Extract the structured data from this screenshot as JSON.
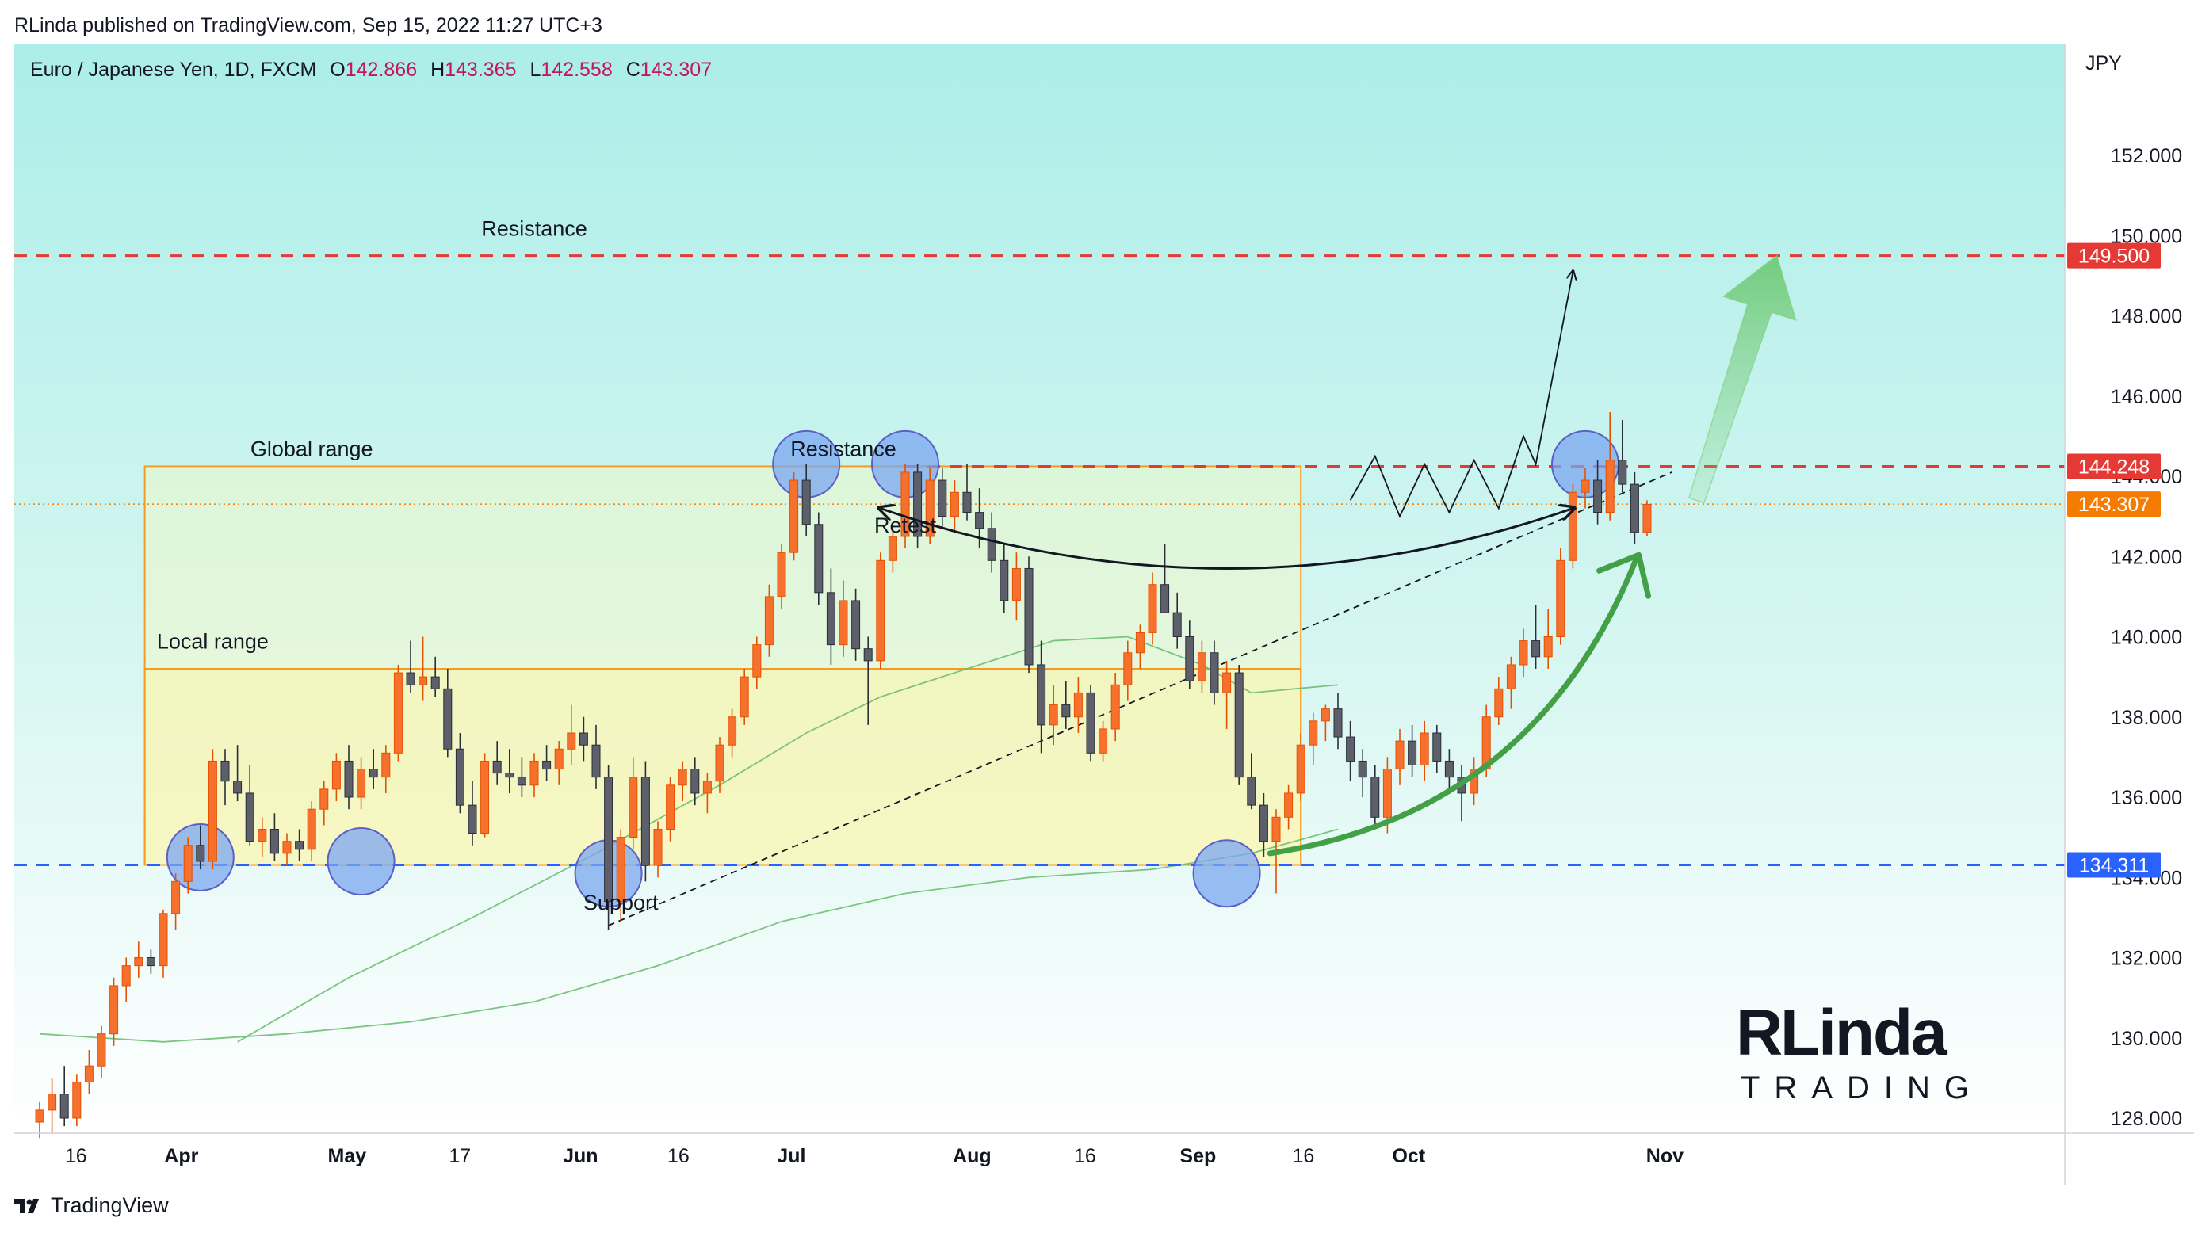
{
  "header": {
    "publisher_line": "RLinda published on TradingView.com, Sep 15, 2022 11:27 UTC+3"
  },
  "legend": {
    "symbol": "Euro / Japanese Yen, 1D, FXCM",
    "o_label": "O",
    "o": "142.866",
    "h_label": "H",
    "h": "143.365",
    "l_label": "L",
    "l": "142.558",
    "c_label": "C",
    "c": "143.307"
  },
  "footer": {
    "brand": "TradingView"
  },
  "logo": {
    "text_top": "RLinda",
    "text_bottom": "TRADING"
  },
  "colors": {
    "up": "#f7712e",
    "down": "#5d606b",
    "resistance": "#e53935",
    "support": "#2962ff",
    "range_border": "#f59b23",
    "ma": "#66bb6a",
    "arrow": "#43a047",
    "circle": "#7aa7f0"
  },
  "chart_data": {
    "type": "candlestick",
    "symbol": "Euro / Japanese Yen",
    "unit": "JPY",
    "timeframe": "1D",
    "ylim": [
      127.5,
      153.5
    ],
    "y_ticks": [
      "152.000",
      "150.000",
      "148.000",
      "146.000",
      "144.000",
      "142.000",
      "140.000",
      "138.000",
      "136.000",
      "134.000",
      "132.000",
      "130.000",
      "128.000"
    ],
    "x_ticks": [
      "16",
      "Apr",
      "May",
      "17",
      "Jun",
      "16",
      "Jul",
      "Aug",
      "16",
      "Sep",
      "16",
      "Oct",
      "Nov"
    ],
    "price_labels": [
      {
        "value": 149.5,
        "text": "149.500",
        "color": "#e53935"
      },
      {
        "value": 144.248,
        "text": "144.248",
        "color": "#e53935"
      },
      {
        "value": 143.307,
        "text": "143.307",
        "color": "#f57c00"
      },
      {
        "value": 134.311,
        "text": "134.311",
        "color": "#2962ff"
      }
    ],
    "annotations": [
      {
        "text": "Resistance",
        "x": 40,
        "y": 150.0
      },
      {
        "text": "Global range",
        "x": 22,
        "y": 144.5
      },
      {
        "text": "Resistance",
        "x": 65,
        "y": 144.5
      },
      {
        "text": "Retest",
        "x": 70,
        "y": 142.6
      },
      {
        "text": "Local range",
        "x": 14,
        "y": 139.7
      },
      {
        "text": "Support",
        "x": 47,
        "y": 133.2
      }
    ],
    "levels": [
      {
        "name": "resistance_high",
        "value": 149.5,
        "style": "dashed",
        "color": "#e53935"
      },
      {
        "name": "resistance",
        "value": 144.248,
        "style": "dashed",
        "color": "#e53935"
      },
      {
        "name": "last_close",
        "value": 143.307,
        "style": "dotted",
        "color": "#f57c00"
      },
      {
        "name": "support",
        "value": 134.311,
        "style": "dashed",
        "color": "#2962ff"
      }
    ],
    "ranges": [
      {
        "name": "Global range",
        "x_from": 8.5,
        "x_to": 102,
        "y_from": 134.311,
        "y_to": 144.248
      },
      {
        "name": "Local range",
        "x_from": 8.5,
        "x_to": 102,
        "y_from": 134.311,
        "y_to": 139.2
      }
    ],
    "candles": [
      [
        127.9,
        128.4,
        127.5,
        128.2
      ],
      [
        128.2,
        129.0,
        127.6,
        128.6
      ],
      [
        128.6,
        129.3,
        127.8,
        128.0
      ],
      [
        128.0,
        129.1,
        127.8,
        128.9
      ],
      [
        128.9,
        129.7,
        128.6,
        129.3
      ],
      [
        129.3,
        130.3,
        129.0,
        130.1
      ],
      [
        130.1,
        131.5,
        129.8,
        131.3
      ],
      [
        131.3,
        132.0,
        130.9,
        131.8
      ],
      [
        131.8,
        132.4,
        131.5,
        132.0
      ],
      [
        132.0,
        132.2,
        131.6,
        131.8
      ],
      [
        131.8,
        133.2,
        131.5,
        133.1
      ],
      [
        133.1,
        134.1,
        132.7,
        133.9
      ],
      [
        133.9,
        135.0,
        133.6,
        134.8
      ],
      [
        134.8,
        135.3,
        134.2,
        134.4
      ],
      [
        134.4,
        137.2,
        134.2,
        136.9
      ],
      [
        136.9,
        137.2,
        135.8,
        136.4
      ],
      [
        136.4,
        137.3,
        135.9,
        136.1
      ],
      [
        136.1,
        136.8,
        134.8,
        134.9
      ],
      [
        134.9,
        135.5,
        134.5,
        135.2
      ],
      [
        135.2,
        135.6,
        134.4,
        134.6
      ],
      [
        134.6,
        135.1,
        134.3,
        134.9
      ],
      [
        134.9,
        135.2,
        134.4,
        134.7
      ],
      [
        134.7,
        135.9,
        134.4,
        135.7
      ],
      [
        135.7,
        136.4,
        135.3,
        136.2
      ],
      [
        136.2,
        137.1,
        135.9,
        136.9
      ],
      [
        136.9,
        137.3,
        135.7,
        136.0
      ],
      [
        136.0,
        137.0,
        135.7,
        136.7
      ],
      [
        136.7,
        137.2,
        136.2,
        136.5
      ],
      [
        136.5,
        137.3,
        136.1,
        137.1
      ],
      [
        137.1,
        139.3,
        136.9,
        139.1
      ],
      [
        139.1,
        139.9,
        138.6,
        138.8
      ],
      [
        138.8,
        140.0,
        138.4,
        139.0
      ],
      [
        139.0,
        139.5,
        138.5,
        138.7
      ],
      [
        138.7,
        139.2,
        137.0,
        137.2
      ],
      [
        137.2,
        137.6,
        135.6,
        135.8
      ],
      [
        135.8,
        136.4,
        134.8,
        135.1
      ],
      [
        135.1,
        137.1,
        135.0,
        136.9
      ],
      [
        136.9,
        137.4,
        136.3,
        136.6
      ],
      [
        136.6,
        137.2,
        136.1,
        136.5
      ],
      [
        136.5,
        137.0,
        136.0,
        136.3
      ],
      [
        136.3,
        137.1,
        136.0,
        136.9
      ],
      [
        136.9,
        137.3,
        136.4,
        136.7
      ],
      [
        136.7,
        137.4,
        136.3,
        137.2
      ],
      [
        137.2,
        138.3,
        136.8,
        137.6
      ],
      [
        137.6,
        138.0,
        136.9,
        137.3
      ],
      [
        137.3,
        137.8,
        136.2,
        136.5
      ],
      [
        136.5,
        136.8,
        132.7,
        133.4
      ],
      [
        133.4,
        135.2,
        132.9,
        135.0
      ],
      [
        135.0,
        137.0,
        134.7,
        136.5
      ],
      [
        136.5,
        136.9,
        133.9,
        134.3
      ],
      [
        134.3,
        135.4,
        134.0,
        135.2
      ],
      [
        135.2,
        136.5,
        134.9,
        136.3
      ],
      [
        136.3,
        136.9,
        135.9,
        136.7
      ],
      [
        136.7,
        137.0,
        135.8,
        136.1
      ],
      [
        136.1,
        136.6,
        135.6,
        136.4
      ],
      [
        136.4,
        137.5,
        136.1,
        137.3
      ],
      [
        137.3,
        138.2,
        137.0,
        138.0
      ],
      [
        138.0,
        139.2,
        137.8,
        139.0
      ],
      [
        139.0,
        140.0,
        138.7,
        139.8
      ],
      [
        139.8,
        141.3,
        139.5,
        141.0
      ],
      [
        141.0,
        142.3,
        140.7,
        142.1
      ],
      [
        142.1,
        144.1,
        141.9,
        143.9
      ],
      [
        143.9,
        144.3,
        142.5,
        142.8
      ],
      [
        142.8,
        143.1,
        140.8,
        141.1
      ],
      [
        141.1,
        141.7,
        139.3,
        139.8
      ],
      [
        139.8,
        141.4,
        139.5,
        140.9
      ],
      [
        140.9,
        141.2,
        139.4,
        139.7
      ],
      [
        139.7,
        140.0,
        137.8,
        139.4
      ],
      [
        139.4,
        142.1,
        139.2,
        141.9
      ],
      [
        141.9,
        142.8,
        141.6,
        142.5
      ],
      [
        142.5,
        144.3,
        142.2,
        144.1
      ],
      [
        144.1,
        144.3,
        142.2,
        142.5
      ],
      [
        142.5,
        144.2,
        142.3,
        143.9
      ],
      [
        143.9,
        144.2,
        142.7,
        143.0
      ],
      [
        143.0,
        143.9,
        142.6,
        143.6
      ],
      [
        143.6,
        144.3,
        142.9,
        143.1
      ],
      [
        143.1,
        143.7,
        142.2,
        142.7
      ],
      [
        142.7,
        143.1,
        141.6,
        141.9
      ],
      [
        141.9,
        142.3,
        140.6,
        140.9
      ],
      [
        140.9,
        142.1,
        140.4,
        141.7
      ],
      [
        141.7,
        142.0,
        139.1,
        139.3
      ],
      [
        139.3,
        139.9,
        137.1,
        137.8
      ],
      [
        137.8,
        138.8,
        137.3,
        138.3
      ],
      [
        138.3,
        138.9,
        137.7,
        138.0
      ],
      [
        138.0,
        139.0,
        137.6,
        138.6
      ],
      [
        138.6,
        138.8,
        136.9,
        137.1
      ],
      [
        137.1,
        137.9,
        136.9,
        137.7
      ],
      [
        137.7,
        139.1,
        137.4,
        138.8
      ],
      [
        138.8,
        139.9,
        138.4,
        139.6
      ],
      [
        139.6,
        140.3,
        139.2,
        140.1
      ],
      [
        140.1,
        141.6,
        139.8,
        141.3
      ],
      [
        141.3,
        142.3,
        140.8,
        140.6
      ],
      [
        140.6,
        141.1,
        139.7,
        140.0
      ],
      [
        140.0,
        140.4,
        138.7,
        138.9
      ],
      [
        138.9,
        139.9,
        138.6,
        139.6
      ],
      [
        139.6,
        139.9,
        138.3,
        138.6
      ],
      [
        138.6,
        139.4,
        137.7,
        139.1
      ],
      [
        139.1,
        139.3,
        136.3,
        136.5
      ],
      [
        136.5,
        137.1,
        135.7,
        135.8
      ],
      [
        135.8,
        136.1,
        134.5,
        134.9
      ],
      [
        134.9,
        135.7,
        133.6,
        135.5
      ],
      [
        135.5,
        136.3,
        135.2,
        136.1
      ],
      [
        136.1,
        137.6,
        135.9,
        137.3
      ],
      [
        137.3,
        138.1,
        136.8,
        137.9
      ],
      [
        137.9,
        138.3,
        137.4,
        138.2
      ],
      [
        138.2,
        138.6,
        137.2,
        137.5
      ],
      [
        137.5,
        137.9,
        136.4,
        136.9
      ],
      [
        136.9,
        137.2,
        136.0,
        136.5
      ],
      [
        136.5,
        136.8,
        135.2,
        135.5
      ],
      [
        135.5,
        137.0,
        135.1,
        136.7
      ],
      [
        136.7,
        137.7,
        136.3,
        137.4
      ],
      [
        137.4,
        137.8,
        136.5,
        136.8
      ],
      [
        136.8,
        137.9,
        136.4,
        137.6
      ],
      [
        137.6,
        137.8,
        136.6,
        136.9
      ],
      [
        136.9,
        137.2,
        136.2,
        136.5
      ],
      [
        136.5,
        136.8,
        135.4,
        136.1
      ],
      [
        136.1,
        137.0,
        135.8,
        136.7
      ],
      [
        136.7,
        138.3,
        136.5,
        138.0
      ],
      [
        138.0,
        139.0,
        137.8,
        138.7
      ],
      [
        138.7,
        139.5,
        138.2,
        139.3
      ],
      [
        139.3,
        140.2,
        139.0,
        139.9
      ],
      [
        139.9,
        140.8,
        139.2,
        139.5
      ],
      [
        139.5,
        140.7,
        139.2,
        140.0
      ],
      [
        140.0,
        142.2,
        139.8,
        141.9
      ],
      [
        141.9,
        143.8,
        141.7,
        143.6
      ],
      [
        143.6,
        144.2,
        143.2,
        143.9
      ],
      [
        143.9,
        144.4,
        142.8,
        143.1
      ],
      [
        143.1,
        145.6,
        142.9,
        144.4
      ],
      [
        144.4,
        145.4,
        143.6,
        143.8
      ],
      [
        143.8,
        144.1,
        142.3,
        142.6
      ],
      [
        142.6,
        143.4,
        142.5,
        143.3
      ]
    ],
    "moving_averages": [
      {
        "name": "MA 50",
        "color": "#66bb6a",
        "points": [
          [
            16,
            129.9
          ],
          [
            25,
            131.5
          ],
          [
            35,
            133.0
          ],
          [
            45,
            134.6
          ],
          [
            55,
            136.3
          ],
          [
            62,
            137.6
          ],
          [
            68,
            138.5
          ],
          [
            76,
            139.3
          ],
          [
            82,
            139.9
          ],
          [
            88,
            140.0
          ],
          [
            94,
            139.3
          ],
          [
            98,
            138.6
          ],
          [
            105,
            138.8
          ]
        ]
      },
      {
        "name": "MA 200",
        "color": "#66bb6a",
        "points": [
          [
            0,
            130.1
          ],
          [
            10,
            129.9
          ],
          [
            20,
            130.1
          ],
          [
            30,
            130.4
          ],
          [
            40,
            130.9
          ],
          [
            50,
            131.8
          ],
          [
            60,
            132.9
          ],
          [
            70,
            133.6
          ],
          [
            80,
            134.0
          ],
          [
            90,
            134.2
          ],
          [
            98,
            134.6
          ],
          [
            105,
            135.2
          ]
        ]
      }
    ],
    "trendline": {
      "from": [
        46,
        132.8
      ],
      "to": [
        132,
        144.1
      ],
      "style": "dashed"
    },
    "projection": [
      [
        106,
        143.4
      ],
      [
        108,
        144.5
      ],
      [
        110,
        143.0
      ],
      [
        112,
        144.3
      ],
      [
        114,
        143.1
      ],
      [
        116,
        144.4
      ],
      [
        118,
        143.2
      ],
      [
        120,
        145.0
      ],
      [
        121,
        144.3
      ],
      [
        124,
        149.1
      ]
    ],
    "highlights": [
      {
        "x": 13,
        "y": 134.5
      },
      {
        "x": 26,
        "y": 134.4
      },
      {
        "x": 46,
        "y": 134.1
      },
      {
        "x": 62,
        "y": 144.3
      },
      {
        "x": 70,
        "y": 144.3
      },
      {
        "x": 96,
        "y": 134.1
      },
      {
        "x": 125,
        "y": 144.3
      }
    ]
  }
}
